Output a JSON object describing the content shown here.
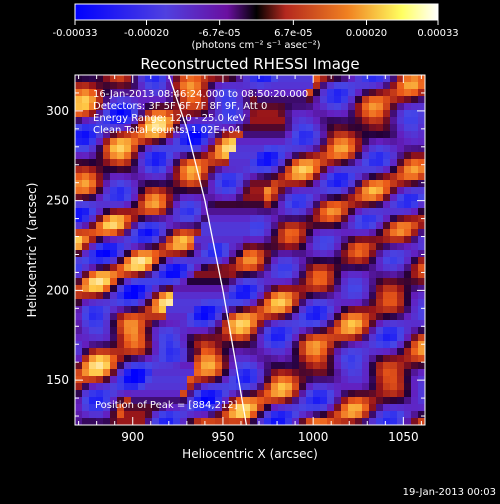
{
  "chart_data": {
    "type": "heatmap",
    "title": "Reconstructed RHESSI Image",
    "xlabel": "Heliocentric X (arcsec)",
    "ylabel": "Heliocentric Y (arcsec)",
    "xlim": [
      868,
      1062
    ],
    "ylim": [
      125,
      320
    ],
    "x_ticks": [
      900,
      950,
      1000,
      1050
    ],
    "y_ticks": [
      150,
      200,
      250,
      300
    ],
    "colorbar": {
      "range": [
        -0.00033,
        0.00033
      ],
      "ticks": [
        "-0.00033",
        "-0.00020",
        "-6.7e-05",
        "6.7e-05",
        "0.00020",
        "0.00033"
      ],
      "tick_values": [
        -0.00033,
        -0.0002,
        -6.7e-05,
        6.7e-05,
        0.0002,
        0.00033
      ],
      "units": "(photons cm⁻² s⁻¹ asec⁻²)",
      "colors": [
        "#0000ff",
        "#5040e0",
        "#6a0fa0",
        "#b4281e",
        "#f08020",
        "#ffff60",
        "#ffffff"
      ]
    },
    "annotations": [
      "16-Jan-2013 08:46:24.000 to 08:50:20.000",
      "Detectors: 3F 5F 6F 7F 8F 9F, Att 0",
      "Energy Range: 12.0 - 25.0 keV",
      "Clean    Total counts: 1.02E+04"
    ],
    "peak_label": "Position of Peak = [884,212]",
    "peak_position": [
      884,
      212
    ],
    "limb_curve_x": [
      920,
      930,
      940,
      950,
      957,
      963
    ],
    "limb_curve_y": [
      320,
      290,
      250,
      200,
      160,
      125
    ],
    "grid": false,
    "legend": "none"
  },
  "footer": {
    "timestamp": "19-Jan-2013 00:03"
  }
}
